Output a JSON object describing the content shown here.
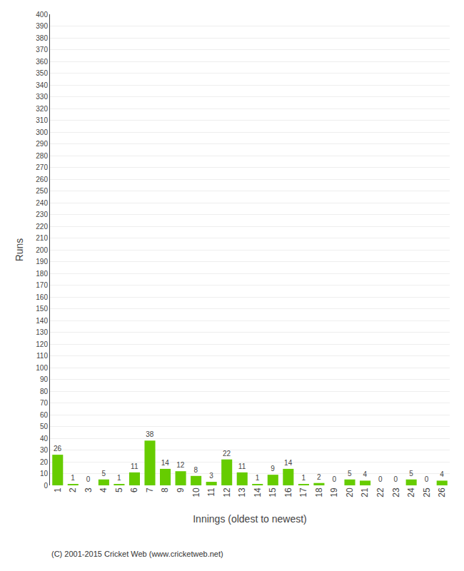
{
  "chart_data": {
    "type": "bar",
    "xlabel": "Innings (oldest to newest)",
    "ylabel": "Runs",
    "categories": [
      1,
      2,
      3,
      4,
      5,
      6,
      7,
      8,
      9,
      10,
      11,
      12,
      13,
      14,
      15,
      16,
      17,
      18,
      19,
      20,
      21,
      22,
      23,
      24,
      25,
      26
    ],
    "values": [
      26,
      1,
      0,
      5,
      1,
      11,
      38,
      14,
      12,
      8,
      3,
      22,
      11,
      1,
      9,
      14,
      1,
      2,
      0,
      5,
      4,
      0,
      0,
      5,
      0,
      4
    ],
    "color": "#66cc00",
    "ylim": [
      0,
      400
    ],
    "yticks": [
      0,
      10,
      20,
      30,
      40,
      50,
      60,
      70,
      80,
      90,
      100,
      110,
      120,
      130,
      140,
      150,
      160,
      170,
      180,
      190,
      200,
      210,
      220,
      230,
      240,
      250,
      260,
      270,
      280,
      290,
      300,
      310,
      320,
      330,
      340,
      350,
      360,
      370,
      380,
      390,
      400
    ],
    "grid": true,
    "data_labels": true,
    "annotations": [
      "(C) 2001-2015 Cricket Web (www.cricketweb.net)"
    ]
  }
}
